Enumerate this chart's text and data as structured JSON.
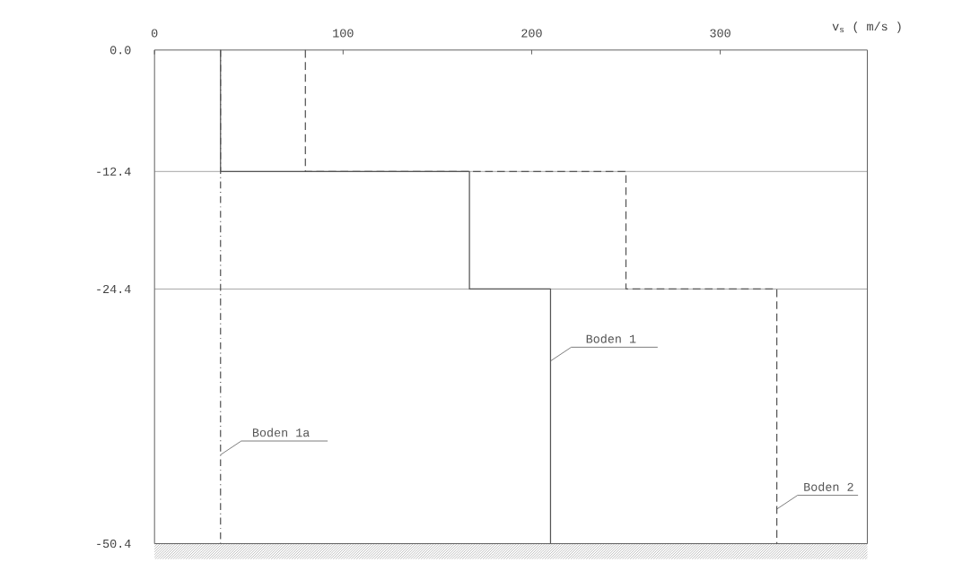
{
  "chart_data": {
    "type": "line",
    "xlabel": "v$_{s}$ ( m/s )",
    "xlim": [
      0,
      378
    ],
    "xticks": [
      0,
      100,
      200,
      300
    ],
    "ylim": [
      -50.4,
      0
    ],
    "yticks": [
      {
        "value": 0,
        "label": "0.0"
      },
      -12.4,
      -24.4,
      -50.4
    ],
    "grid": false,
    "legend": false,
    "series": [
      {
        "name": "Boden 1a",
        "color": "#555555",
        "line_style": "dashdot",
        "x": [
          35,
          35
        ],
        "values": [
          0,
          -50.4
        ]
      },
      {
        "name": "Boden 1",
        "color": "#555555",
        "line_style": "solid",
        "x": [
          35,
          35,
          167,
          167,
          210,
          210
        ],
        "values": [
          0,
          -12.4,
          -12.4,
          -24.4,
          -24.4,
          -50.4
        ]
      },
      {
        "name": "Boden 2",
        "color": "#555555",
        "line_style": "dashed",
        "x": [
          80,
          80,
          250,
          250,
          330,
          330
        ],
        "values": [
          0,
          -12.4,
          -12.4,
          -24.4,
          -24.4,
          -50.4
        ]
      }
    ],
    "ref_lines": [
      {
        "axis": "y",
        "value": -12.4,
        "color": "#666666"
      },
      {
        "axis": "y",
        "value": -24.4,
        "color": "#666666"
      }
    ]
  }
}
